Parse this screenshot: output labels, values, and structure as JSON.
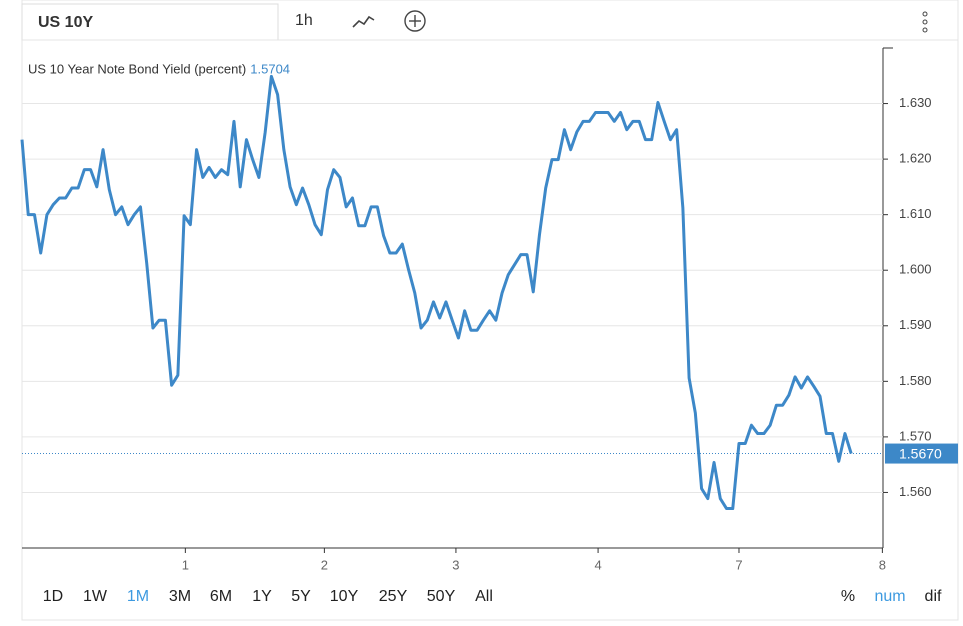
{
  "toolbar": {
    "symbol": "US 10Y",
    "interval": "1h"
  },
  "ranges": [
    "1D",
    "1W",
    "1M",
    "3M",
    "6M",
    "1Y",
    "5Y",
    "10Y",
    "25Y",
    "50Y",
    "All"
  ],
  "active_range": 2,
  "modes": [
    "%",
    "num",
    "dif"
  ],
  "active_mode": 1,
  "chart_data": {
    "type": "line",
    "header_value": 1.5704,
    "last_value": {
      "value": 1.567,
      "label": "1.5670"
    },
    "series": [
      {
        "name": "US 10 Year Note Bond Yield (percent)",
        "color": "#3d88c8",
        "values": [
          1.6235,
          1.61,
          1.61,
          1.6031,
          1.61,
          1.6118,
          1.613,
          1.613,
          1.6148,
          1.6148,
          1.6181,
          1.6181,
          1.615,
          1.6217,
          1.6145,
          1.61,
          1.6114,
          1.6082,
          1.61,
          1.6114,
          1.6013,
          1.5896,
          1.591,
          1.591,
          1.5793,
          1.5811,
          1.6098,
          1.6082,
          1.6217,
          1.6167,
          1.6185,
          1.6167,
          1.6181,
          1.6172,
          1.6268,
          1.615,
          1.6235,
          1.6199,
          1.6167,
          1.6248,
          1.6349,
          1.6316,
          1.6217,
          1.615,
          1.6118,
          1.6148,
          1.6118,
          1.6082,
          1.6064,
          1.6145,
          1.6181,
          1.6167,
          1.6114,
          1.613,
          1.608,
          1.608,
          1.6114,
          1.6114,
          1.6062,
          1.6031,
          1.6031,
          1.6047,
          1.6001,
          1.5959,
          1.5896,
          1.591,
          1.5943,
          1.5914,
          1.5943,
          1.591,
          1.5878,
          1.5927,
          1.5892,
          1.5892,
          1.591,
          1.5927,
          1.591,
          1.5959,
          1.5992,
          1.601,
          1.6028,
          1.6028,
          1.5961,
          1.6064,
          1.6148,
          1.6199,
          1.6199,
          1.6253,
          1.6217,
          1.6249,
          1.6268,
          1.6268,
          1.6284,
          1.6284,
          1.6284,
          1.6268,
          1.6284,
          1.6253,
          1.6268,
          1.6268,
          1.6235,
          1.6235,
          1.6302,
          1.6268,
          1.6235,
          1.6253,
          1.6112,
          1.5806,
          1.5743,
          1.5607,
          1.5589,
          1.5654,
          1.5589,
          1.5571,
          1.5571,
          1.5688,
          1.5688,
          1.5721,
          1.5706,
          1.5706,
          1.5721,
          1.5757,
          1.5757,
          1.5775,
          1.5808,
          1.5788,
          1.5808,
          1.5791,
          1.5773,
          1.5706,
          1.5706,
          1.5656,
          1.5706,
          1.567
        ]
      }
    ],
    "x": [
      0,
      1,
      2,
      3,
      4,
      5,
      6,
      7,
      8,
      9,
      10,
      11,
      12,
      13,
      14,
      15,
      16,
      17,
      18,
      19,
      20,
      21,
      22,
      23,
      24,
      25,
      26,
      27,
      28,
      29,
      30,
      31,
      32,
      33,
      34,
      35,
      36,
      37,
      38,
      39,
      40,
      41,
      42,
      43,
      44,
      45,
      46,
      47,
      48,
      49,
      50,
      51,
      52,
      53,
      54,
      55,
      56,
      57,
      58,
      59,
      60,
      61,
      62,
      63,
      64,
      65,
      66,
      67,
      68,
      69,
      70,
      71,
      72,
      73,
      74,
      75,
      76,
      77,
      78,
      79,
      80,
      81,
      82,
      83,
      84,
      85,
      86,
      87,
      88,
      89,
      90,
      91,
      92,
      93,
      94,
      95,
      96,
      97,
      98,
      99,
      100,
      101,
      102,
      103,
      104,
      105,
      106,
      107,
      108,
      109,
      110,
      111,
      112,
      113,
      114,
      115,
      116,
      117,
      118,
      119,
      120,
      121,
      122,
      123,
      124,
      125,
      126,
      127,
      128,
      129,
      130,
      131,
      132,
      133
    ],
    "xlim": [
      0,
      138.1
    ],
    "xticks": [
      {
        "value": 26.2,
        "label": "1"
      },
      {
        "value": 48.5,
        "label": "2"
      },
      {
        "value": 69.6,
        "label": "3"
      },
      {
        "value": 92.4,
        "label": "4"
      },
      {
        "value": 115,
        "label": "7"
      },
      {
        "value": 138,
        "label": "8"
      }
    ],
    "ylim": [
      1.55,
      1.64
    ],
    "yticks": [
      {
        "value": 1.56,
        "label": "1.560"
      },
      {
        "value": 1.57,
        "label": "1.570"
      },
      {
        "value": 1.58,
        "label": "1.580"
      },
      {
        "value": 1.59,
        "label": "1.590"
      },
      {
        "value": 1.6,
        "label": "1.600"
      },
      {
        "value": 1.61,
        "label": "1.610"
      },
      {
        "value": 1.62,
        "label": "1.620"
      },
      {
        "value": 1.63,
        "label": "1.630"
      }
    ],
    "grid": true
  }
}
